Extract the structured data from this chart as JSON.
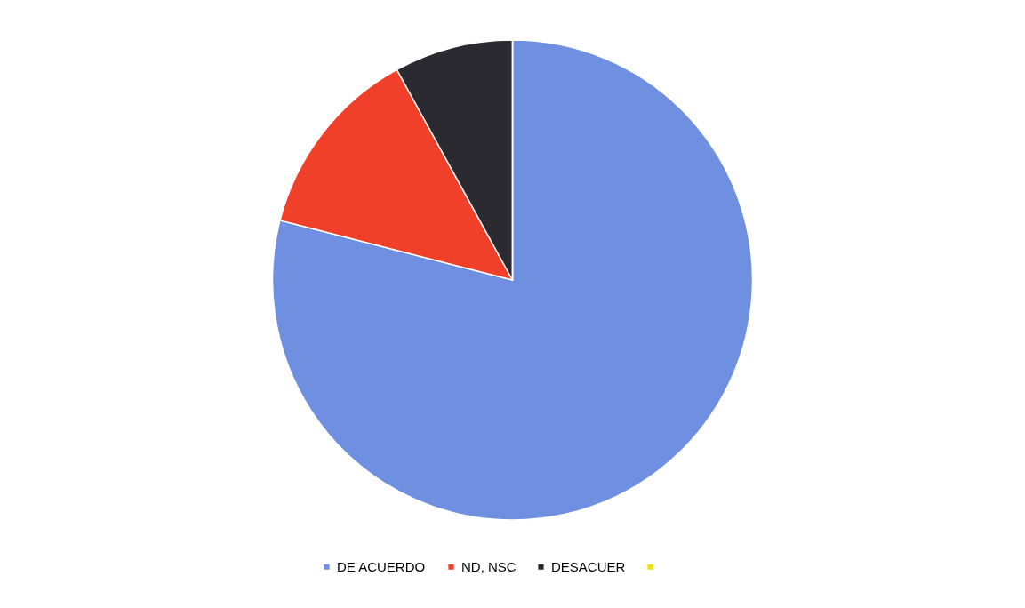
{
  "chart_data": {
    "type": "pie",
    "categories": [
      "DE ACUERDO",
      "ND, NSC",
      "DESACUER",
      null
    ],
    "values": [
      79,
      13,
      8,
      0
    ],
    "colors": [
      "#6f8fe0",
      "#f0402a",
      "#2a2a30",
      "#f5e000"
    ],
    "legend": "bottom"
  }
}
